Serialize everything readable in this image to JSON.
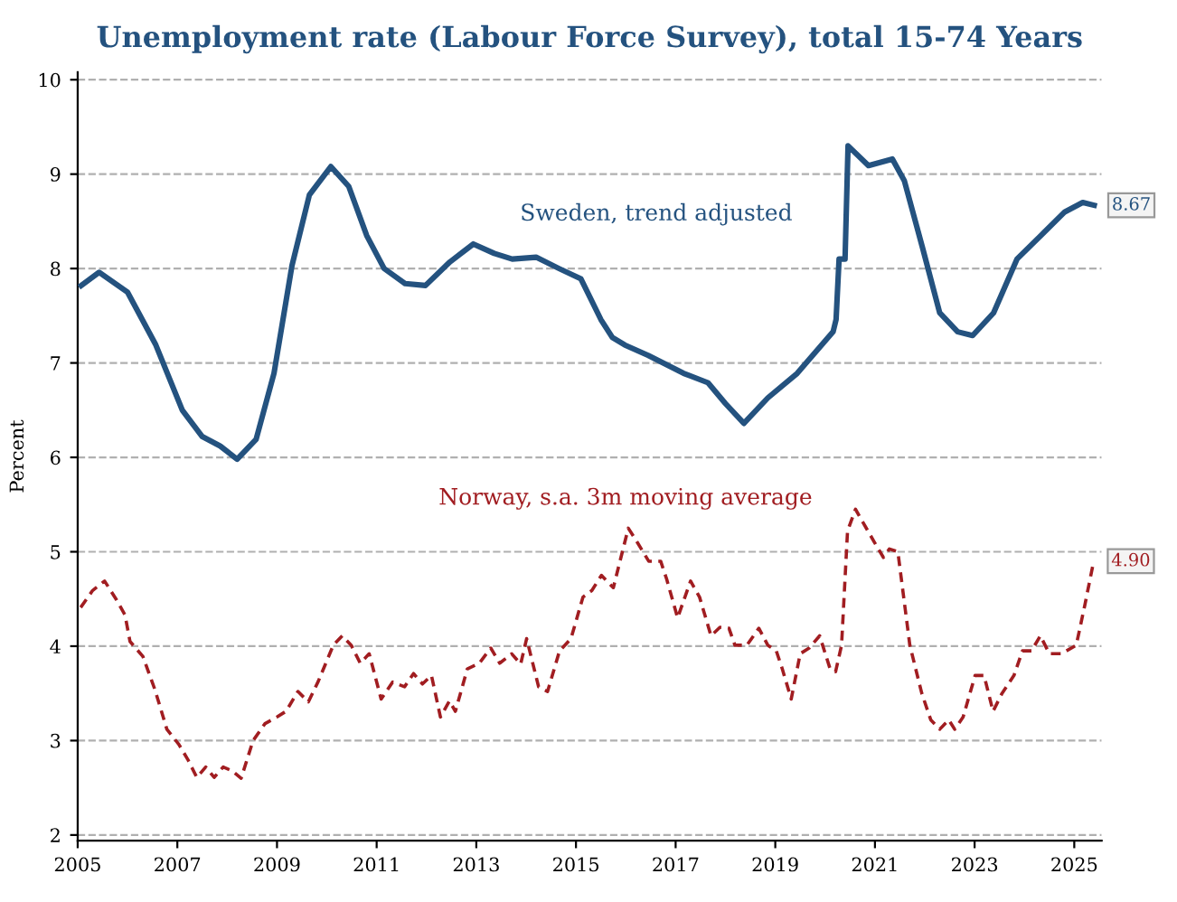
{
  "chart_data": {
    "type": "line",
    "title": "Unemployment rate (Labour Force Survey), total 15-74 Years",
    "ylabel": "Percent",
    "xlim": [
      2005,
      2025.55
    ],
    "xticks": [
      2005,
      2007,
      2009,
      2011,
      2013,
      2015,
      2017,
      2019,
      2021,
      2023,
      2025
    ],
    "ylim": [
      1.94,
      10.08
    ],
    "yticks": [
      2,
      3,
      4,
      5,
      6,
      7,
      8,
      9,
      10
    ],
    "grid": "y",
    "legend": false,
    "series": [
      {
        "name": "Sweden, trend adjusted",
        "color": "#24527f",
        "line_style": "solid",
        "x": [
          2005.07,
          2005.43,
          2006.0,
          2006.56,
          2007.1,
          2007.5,
          2007.86,
          2008.2,
          2008.58,
          2008.94,
          2009.3,
          2009.65,
          2010.08,
          2010.44,
          2010.8,
          2011.15,
          2011.57,
          2011.98,
          2012.47,
          2012.94,
          2013.36,
          2013.72,
          2014.2,
          2014.66,
          2015.1,
          2015.5,
          2015.73,
          2015.98,
          2016.45,
          2017.16,
          2017.65,
          2018.0,
          2018.37,
          2018.85,
          2019.44,
          2019.8,
          2020.16,
          2020.22,
          2020.28,
          2020.4,
          2020.46,
          2020.87,
          2021.35,
          2021.59,
          2021.95,
          2022.3,
          2022.66,
          2022.96,
          2023.38,
          2023.85,
          2024.33,
          2024.81,
          2025.17,
          2025.4
        ],
        "values": [
          7.82,
          7.96,
          7.75,
          7.2,
          6.5,
          6.22,
          6.12,
          5.98,
          6.19,
          6.89,
          8.03,
          8.78,
          9.08,
          8.87,
          8.35,
          8.0,
          7.84,
          7.82,
          8.07,
          8.26,
          8.16,
          8.1,
          8.12,
          8.0,
          7.89,
          7.46,
          7.27,
          7.19,
          7.08,
          6.89,
          6.79,
          6.57,
          6.36,
          6.63,
          6.89,
          7.11,
          7.33,
          7.46,
          8.1,
          8.1,
          9.3,
          9.09,
          9.16,
          8.93,
          8.23,
          7.53,
          7.33,
          7.29,
          7.53,
          8.1,
          8.35,
          8.6,
          8.7,
          8.67
        ]
      },
      {
        "name": "Norway, s.a. 3m moving average",
        "color": "#a11d21",
        "line_style": "dashed",
        "x": [
          2005.06,
          2005.3,
          2005.54,
          2005.78,
          2005.95,
          2006.05,
          2006.31,
          2006.55,
          2006.79,
          2007.03,
          2007.21,
          2007.39,
          2007.57,
          2007.74,
          2007.92,
          2008.1,
          2008.28,
          2008.52,
          2008.76,
          2009.0,
          2009.18,
          2009.42,
          2009.63,
          2009.83,
          2010.13,
          2010.31,
          2010.49,
          2010.67,
          2010.85,
          2011.09,
          2011.32,
          2011.56,
          2011.74,
          2011.92,
          2012.1,
          2012.28,
          2012.46,
          2012.58,
          2012.82,
          2013.06,
          2013.29,
          2013.47,
          2013.71,
          2013.89,
          2014.01,
          2014.25,
          2014.43,
          2014.67,
          2014.9,
          2015.14,
          2015.32,
          2015.51,
          2015.75,
          2016.05,
          2016.23,
          2016.46,
          2016.7,
          2016.82,
          2017.04,
          2017.3,
          2017.48,
          2017.71,
          2017.89,
          2018.07,
          2018.19,
          2018.43,
          2018.67,
          2018.85,
          2019.02,
          2019.14,
          2019.32,
          2019.5,
          2019.68,
          2019.89,
          2020.1,
          2020.21,
          2020.33,
          2020.45,
          2020.61,
          2020.75,
          2020.99,
          2021.17,
          2021.29,
          2021.46,
          2021.7,
          2021.94,
          2022.12,
          2022.3,
          2022.48,
          2022.6,
          2022.77,
          2023.01,
          2023.19,
          2023.37,
          2023.55,
          2023.79,
          2023.96,
          2024.14,
          2024.32,
          2024.5,
          2024.74,
          2025.04,
          2025.21,
          2025.39
        ],
        "values": [
          4.41,
          4.59,
          4.69,
          4.49,
          4.33,
          4.05,
          3.89,
          3.54,
          3.12,
          2.96,
          2.8,
          2.61,
          2.72,
          2.61,
          2.72,
          2.68,
          2.6,
          3.0,
          3.18,
          3.25,
          3.31,
          3.52,
          3.41,
          3.63,
          4.01,
          4.11,
          4.01,
          3.82,
          3.92,
          3.44,
          3.62,
          3.57,
          3.71,
          3.6,
          3.69,
          3.25,
          3.42,
          3.31,
          3.76,
          3.82,
          3.98,
          3.82,
          3.92,
          3.81,
          4.08,
          3.57,
          3.52,
          3.95,
          4.08,
          4.52,
          4.59,
          4.75,
          4.62,
          5.25,
          5.1,
          4.9,
          4.9,
          4.71,
          4.3,
          4.69,
          4.52,
          4.11,
          4.2,
          4.19,
          4.01,
          4.01,
          4.19,
          4.01,
          3.95,
          3.76,
          3.44,
          3.92,
          3.98,
          4.11,
          3.76,
          3.73,
          4.01,
          5.22,
          5.45,
          5.32,
          5.1,
          4.94,
          5.03,
          5.0,
          4.01,
          3.5,
          3.22,
          3.12,
          3.22,
          3.12,
          3.25,
          3.69,
          3.69,
          3.31,
          3.5,
          3.69,
          3.95,
          3.95,
          4.11,
          3.92,
          3.92,
          4.01,
          4.43,
          4.9
        ]
      }
    ],
    "annotations": [
      {
        "text": "8.67",
        "x": 2025.4,
        "y": 8.67
      },
      {
        "text": "4.90",
        "x": 2025.39,
        "y": 4.9
      }
    ]
  }
}
